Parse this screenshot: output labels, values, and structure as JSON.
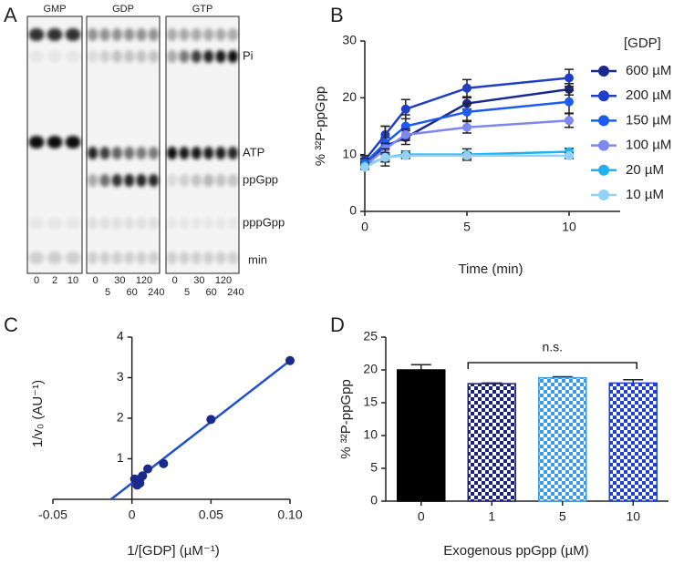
{
  "panel_labels": [
    "A",
    "B",
    "C",
    "D"
  ],
  "gel": {
    "groups": [
      {
        "title": "GMP",
        "times": [
          "0",
          "2",
          "10"
        ]
      },
      {
        "title": "GDP",
        "times": [
          "0",
          "5",
          "30",
          "60",
          "120",
          "240"
        ]
      },
      {
        "title": "GTP",
        "times": [
          "0",
          "5",
          "30",
          "60",
          "120",
          "240"
        ]
      }
    ],
    "band_labels": [
      "Pi",
      "ATP",
      "ppGpp",
      "pppGpp"
    ],
    "time_unit": "min"
  },
  "chart_data": [
    {
      "type": "line",
      "xlabel": "Time (min)",
      "ylabel": "% ³²P-ppGpp",
      "legend_title": "[GDP]",
      "x": [
        0,
        1,
        2,
        5,
        10
      ],
      "xlim": [
        0,
        12.5
      ],
      "xticks": [
        0,
        5,
        10
      ],
      "ylim": [
        0,
        30
      ],
      "yticks": [
        0,
        10,
        20,
        30
      ],
      "series": [
        {
          "name": "600 µM",
          "color": "#1a2a8c",
          "values": [
            8.5,
            11.5,
            13,
            19,
            21.5
          ],
          "errors": [
            0.8,
            1.5,
            1.2,
            1,
            1
          ]
        },
        {
          "name": "200 µM",
          "color": "#1f3fc8",
          "values": [
            9,
            13.5,
            18,
            21.7,
            23.5
          ],
          "errors": [
            0.8,
            1.5,
            1.7,
            1.5,
            1.5
          ]
        },
        {
          "name": "150 µM",
          "color": "#1d5cf2",
          "values": [
            8.5,
            12,
            15,
            17.5,
            19.3
          ],
          "errors": [
            0.8,
            3,
            2,
            1.5,
            2
          ]
        },
        {
          "name": "100 µM",
          "color": "#7d87f0",
          "values": [
            8,
            11,
            13.5,
            14.8,
            16
          ],
          "errors": [
            0.6,
            1,
            1,
            1,
            1.2
          ]
        },
        {
          "name": "20 µM",
          "color": "#1fb2f0",
          "values": [
            8,
            9.5,
            10,
            10,
            10.5
          ],
          "errors": [
            0.5,
            1.5,
            0.6,
            1,
            0.6
          ]
        },
        {
          "name": "10 µM",
          "color": "#92d2f6",
          "values": [
            7.8,
            9.5,
            9.8,
            9.8,
            9.8
          ],
          "errors": [
            0.4,
            0.8,
            0.5,
            0.5,
            0.5
          ]
        }
      ]
    },
    {
      "type": "scatter",
      "xlabel": "1/[GDP] (µM⁻¹)",
      "ylabel": "1/v₀ (AU⁻¹)",
      "x": [
        0.1,
        0.05,
        0.02,
        0.01,
        0.0067,
        0.005,
        0.005,
        0.0017,
        0.0033
      ],
      "values": [
        3.42,
        1.97,
        0.88,
        0.75,
        0.58,
        0.5,
        0.4,
        0.5,
        0.35
      ],
      "color": "#1a2a8c",
      "fit": {
        "slope": 30.2,
        "intercept": 0.4,
        "color": "#1f4fd0"
      },
      "xlim": [
        -0.05,
        0.1
      ],
      "xticks": [
        {
          "value": -0.05,
          "label": "-0.05"
        },
        0,
        0.05,
        {
          "value": 0.1,
          "label": "0.10"
        }
      ],
      "ylim": [
        0,
        4
      ],
      "yticks": [
        1,
        2,
        3,
        4
      ]
    },
    {
      "type": "bar",
      "xlabel": "Exogenous ppGpp (µM)",
      "ylabel": "% ³²P-ppGpp",
      "categories": [
        "0",
        "1",
        "5",
        "10"
      ],
      "values": [
        20,
        17.9,
        18.8,
        18
      ],
      "errors": [
        0.8,
        0.1,
        0.15,
        0.5
      ],
      "colors": [
        "#000000",
        "#1a237e",
        "#3a9ae6",
        "#1e3fd0"
      ],
      "patterns": [
        "solid",
        "checker",
        "checker",
        "checker"
      ],
      "ylim": [
        0,
        25
      ],
      "yticks": [
        0,
        5,
        10,
        15,
        20,
        25
      ],
      "annotation": "n.s."
    }
  ]
}
